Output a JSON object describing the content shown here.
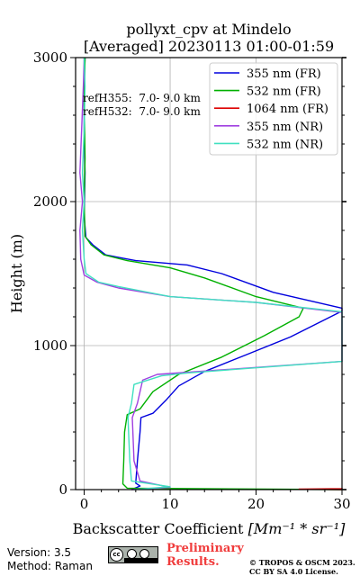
{
  "chart_data": {
    "type": "line",
    "title": "pollyxt_cpv at Mindelo",
    "subtitle": "[Averaged] 20230113 01:00-01:59",
    "xlabel": "Backscatter Coefficient",
    "xlabel_unit": "[Mm⁻¹ * sr⁻¹]",
    "ylabel": "Height (m)",
    "xlim": [
      -1,
      30
    ],
    "ylim": [
      0,
      3000
    ],
    "xticks": [
      0,
      10,
      20,
      30
    ],
    "yticks": [
      0,
      1000,
      2000,
      3000
    ],
    "grid": true,
    "legend_position": "top-right",
    "annotations": [
      "refH355:  7.0- 9.0 km",
      "refH532:  7.0- 9.0 km"
    ],
    "series": [
      {
        "name": "355 nm (FR)",
        "color": "#0000dd",
        "points": [
          [
            5.5,
            0
          ],
          [
            6.5,
            25
          ],
          [
            6.0,
            45
          ],
          [
            6.2,
            200
          ],
          [
            6.5,
            400
          ],
          [
            6.6,
            500
          ],
          [
            8.0,
            530
          ],
          [
            9.5,
            620
          ],
          [
            11.0,
            720
          ],
          [
            14.0,
            820
          ],
          [
            19.0,
            940
          ],
          [
            24.0,
            1060
          ],
          [
            30.0,
            1240
          ],
          [
            30.0,
            1260
          ],
          [
            22.0,
            1370
          ],
          [
            16.0,
            1500
          ],
          [
            12.0,
            1560
          ],
          [
            6.0,
            1590
          ],
          [
            2.5,
            1630
          ],
          [
            1.0,
            1700
          ],
          [
            0.2,
            1750
          ],
          [
            0.0,
            1900
          ],
          [
            0.1,
            2200
          ],
          [
            0.0,
            2500
          ],
          [
            0.0,
            2800
          ],
          [
            0.1,
            3000
          ]
        ]
      },
      {
        "name": "532 nm (FR)",
        "color": "#00b000",
        "points": [
          [
            30.0,
            0
          ],
          [
            5.0,
            10
          ],
          [
            4.5,
            40
          ],
          [
            4.6,
            200
          ],
          [
            4.7,
            400
          ],
          [
            5.0,
            520
          ],
          [
            6.5,
            560
          ],
          [
            8.0,
            680
          ],
          [
            11.0,
            800
          ],
          [
            16.0,
            920
          ],
          [
            21.0,
            1070
          ],
          [
            25.0,
            1200
          ],
          [
            25.5,
            1260
          ],
          [
            20.0,
            1340
          ],
          [
            14.0,
            1470
          ],
          [
            10.0,
            1540
          ],
          [
            5.0,
            1590
          ],
          [
            2.3,
            1630
          ],
          [
            0.8,
            1700
          ],
          [
            0.1,
            1760
          ],
          [
            0.0,
            2000
          ],
          [
            0.1,
            2300
          ],
          [
            0.0,
            2700
          ],
          [
            0.1,
            3000
          ]
        ]
      },
      {
        "name": "1064 nm (FR)",
        "color": "#dd0000",
        "points": [
          [
            30.0,
            0
          ],
          [
            25.0,
            3
          ],
          [
            30.0,
            6
          ],
          [
            30.0,
            12
          ]
        ]
      },
      {
        "name": "355 nm (NR)",
        "color": "#a040e0",
        "points": [
          [
            5.5,
            0
          ],
          [
            10.0,
            15
          ],
          [
            6.5,
            60
          ],
          [
            5.8,
            200
          ],
          [
            5.6,
            500
          ],
          [
            6.2,
            600
          ],
          [
            6.8,
            760
          ],
          [
            8.5,
            800
          ],
          [
            30.0,
            890
          ],
          [
            30.0,
            1230
          ],
          [
            20.0,
            1300
          ],
          [
            10.0,
            1340
          ],
          [
            4.0,
            1400
          ],
          [
            1.5,
            1440
          ],
          [
            0.0,
            1490
          ],
          [
            -0.4,
            1600
          ],
          [
            -0.5,
            1800
          ],
          [
            -0.2,
            2000
          ],
          [
            -0.5,
            2200
          ],
          [
            -0.3,
            2500
          ],
          [
            -0.1,
            2800
          ],
          [
            0.0,
            3000
          ]
        ]
      },
      {
        "name": "532 nm (NR)",
        "color": "#40e0c0",
        "points": [
          [
            5.8,
            0
          ],
          [
            10.0,
            20
          ],
          [
            5.5,
            60
          ],
          [
            5.3,
            200
          ],
          [
            5.1,
            500
          ],
          [
            5.5,
            600
          ],
          [
            5.8,
            730
          ],
          [
            9.0,
            790
          ],
          [
            12.0,
            810
          ],
          [
            30.0,
            890
          ],
          [
            30.0,
            1235
          ],
          [
            20.0,
            1300
          ],
          [
            10.0,
            1340
          ],
          [
            4.0,
            1410
          ],
          [
            1.7,
            1440
          ],
          [
            0.2,
            1500
          ],
          [
            0.0,
            1600
          ],
          [
            -0.2,
            1800
          ],
          [
            0.0,
            2000
          ],
          [
            -0.2,
            2200
          ],
          [
            0.0,
            2500
          ],
          [
            0.1,
            2800
          ],
          [
            0.0,
            3000
          ]
        ]
      }
    ]
  },
  "footer": {
    "version": "Version: 3.5",
    "method": "Method: Raman",
    "preliminary_line1": "Preliminary",
    "preliminary_line2": "Results.",
    "copyright_line1": "© TROPOS & OSCM 2023.",
    "copyright_line2": "CC BY SA 4.0 License.",
    "license_badge_text": [
      "cc",
      "BY",
      "SA"
    ]
  }
}
